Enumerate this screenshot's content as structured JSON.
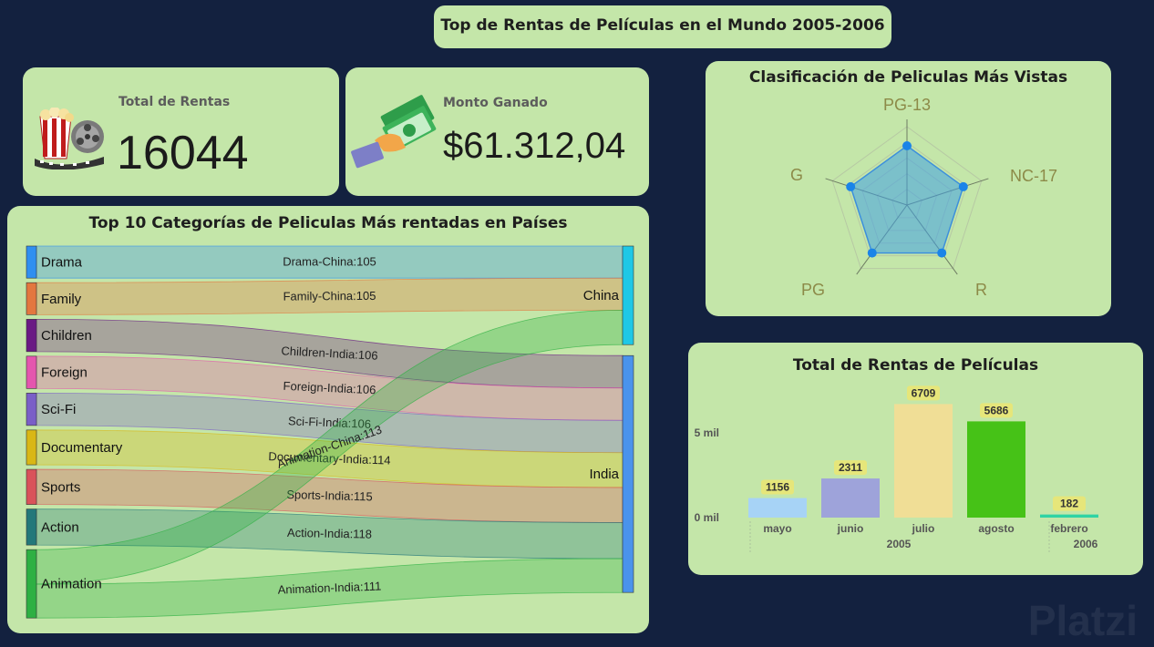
{
  "header": {
    "title": "Top de Rentas de Películas en el Mundo 2005-2006"
  },
  "kpis": {
    "rentals": {
      "label": "Total de Rentas",
      "value": "16044",
      "icon": "film-reel-popcorn-icon"
    },
    "amount": {
      "label": "Monto Ganado",
      "value": "$61.312,04",
      "icon": "hand-money-icon"
    }
  },
  "sankey": {
    "title": "Top 10 Categorías de Peliculas Más rentadas en Países",
    "sources": [
      {
        "name": "Drama",
        "color": "#2f8ff0"
      },
      {
        "name": "Family",
        "color": "#e3773f"
      },
      {
        "name": "Children",
        "color": "#6a1a84"
      },
      {
        "name": "Foreign",
        "color": "#e456ae"
      },
      {
        "name": "Sci-Fi",
        "color": "#7a5fc7"
      },
      {
        "name": "Documentary",
        "color": "#d9b715"
      },
      {
        "name": "Sports",
        "color": "#d9525a"
      },
      {
        "name": "Action",
        "color": "#23787a"
      },
      {
        "name": "Animation",
        "color": "#2eb043"
      }
    ],
    "targets": [
      {
        "name": "China",
        "color": "#1ec8e6"
      },
      {
        "name": "India",
        "color": "#4a93ec"
      }
    ],
    "links": [
      {
        "label": "Drama-China:105",
        "source": "Drama",
        "target": "China",
        "value": 105
      },
      {
        "label": "Family-China:105",
        "source": "Family",
        "target": "China",
        "value": 105
      },
      {
        "label": "Children-India:106",
        "source": "Children",
        "target": "India",
        "value": 106
      },
      {
        "label": "Foreign-India:106",
        "source": "Foreign",
        "target": "India",
        "value": 106
      },
      {
        "label": "Sci-Fi-India:106",
        "source": "Sci-Fi",
        "target": "India",
        "value": 106
      },
      {
        "label": "Documentary-India:114",
        "source": "Documentary",
        "target": "India",
        "value": 114
      },
      {
        "label": "Sports-India:115",
        "source": "Sports",
        "target": "India",
        "value": 115
      },
      {
        "label": "Action-India:118",
        "source": "Action",
        "target": "India",
        "value": 118
      },
      {
        "label": "Animation-China:113",
        "source": "Animation",
        "target": "China",
        "value": 113
      },
      {
        "label": "Animation-India:111",
        "source": "Animation",
        "target": "India",
        "value": 111
      }
    ]
  },
  "radar": {
    "title": "Clasificación de Peliculas Más Vistas",
    "axes": [
      "PG-13",
      "NC-17",
      "R",
      "PG",
      "G"
    ]
  },
  "bars": {
    "title": "Total de Rentas de Películas",
    "y_ticks": [
      "5 mil",
      "0 mil"
    ],
    "categories": [
      "mayo",
      "junio",
      "julio",
      "agosto",
      "febrero"
    ],
    "values": [
      1156,
      2311,
      6709,
      5686,
      182
    ],
    "value_labels": [
      "1156",
      "2311",
      "6709",
      "5686",
      "182"
    ],
    "colors": [
      "#a7d3f6",
      "#9ea3da",
      "#f0de96",
      "#46c217",
      "#2fd3a4"
    ],
    "groups": [
      "2005",
      "2006"
    ]
  },
  "chart_data": [
    {
      "type": "bar",
      "title": "Total de Rentas de Películas",
      "categories": [
        "mayo 2005",
        "junio 2005",
        "julio 2005",
        "agosto 2005",
        "febrero 2006"
      ],
      "values": [
        1156,
        2311,
        6709,
        5686,
        182
      ],
      "ylim": [
        0,
        7000
      ]
    },
    {
      "type": "sankey",
      "title": "Top 10 Categorías de Peliculas Más rentadas en Países",
      "links": [
        [
          "Drama",
          "China",
          105
        ],
        [
          "Family",
          "China",
          105
        ],
        [
          "Children",
          "India",
          106
        ],
        [
          "Foreign",
          "India",
          106
        ],
        [
          "Sci-Fi",
          "India",
          106
        ],
        [
          "Documentary",
          "India",
          114
        ],
        [
          "Sports",
          "India",
          115
        ],
        [
          "Action",
          "India",
          118
        ],
        [
          "Animation",
          "China",
          113
        ],
        [
          "Animation",
          "India",
          111
        ]
      ]
    },
    {
      "type": "radar",
      "title": "Clasificación de Peliculas Más Vistas",
      "axes": [
        "PG-13",
        "NC-17",
        "R",
        "PG",
        "G"
      ]
    }
  ],
  "watermark": "Platzi"
}
